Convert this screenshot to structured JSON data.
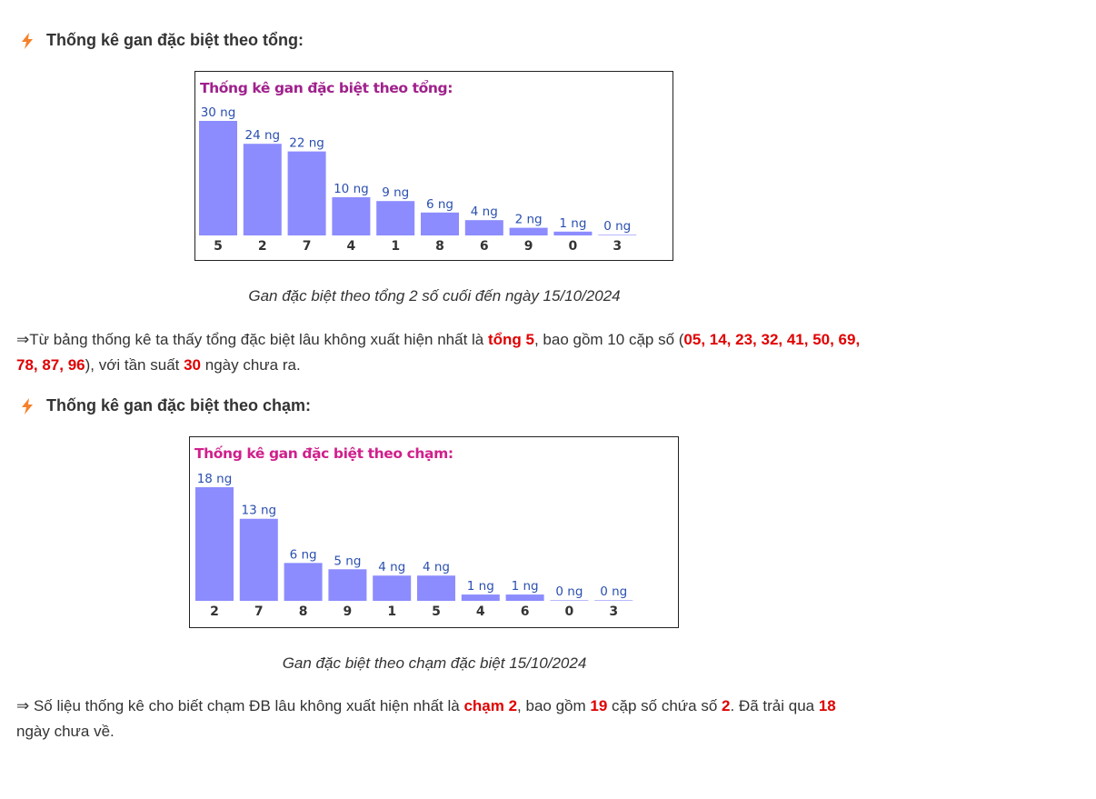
{
  "section1": {
    "heading": "Thống kê gan đặc biệt theo tổng:",
    "caption": "Gan đặc biệt theo tổng 2 số cuối đến ngày 15/10/2024",
    "para": {
      "p1": "⇒Từ bảng thống kê ta thấy tổng đặc biệt lâu không xuất hiện nhất là ",
      "h1": "tổng 5",
      "p2": ", bao gồm 10 cặp số (",
      "h2": "05, 14, 23, 32, 41, 50, 69, 78, 87, 96",
      "p3": "), với tần suất ",
      "h3": "30",
      "p4": " ngày chưa ra."
    }
  },
  "section2": {
    "heading": "Thống kê gan đặc biệt theo chạm:",
    "caption": "Gan đặc biệt theo chạm đặc biệt 15/10/2024",
    "para": {
      "p1": "⇒ Số liệu thống kê cho biết chạm ĐB lâu không xuất hiện nhất là ",
      "h1": "chạm 2",
      "p2": ", bao gồm ",
      "h2": "19",
      "p3": " cặp số chứa số ",
      "h3": "2",
      "p4": ". Đã trải qua ",
      "h4": "18",
      "p5": " ngày chưa về."
    }
  },
  "colors": {
    "bar": "#8c8cff",
    "value_label": "#2a4fb0",
    "title_1": "#a0208c",
    "title_2": "#d0208c",
    "highlight": "#e00000",
    "bolt": "#f5822a"
  },
  "chart_data": [
    {
      "type": "bar",
      "title": "Thống kê gan đặc biệt theo tổng:",
      "categories": [
        "5",
        "2",
        "7",
        "4",
        "1",
        "8",
        "6",
        "9",
        "0",
        "3"
      ],
      "values": [
        30,
        24,
        22,
        10,
        9,
        6,
        4,
        2,
        1,
        0
      ],
      "value_labels": [
        "30 ng",
        "24 ng",
        "22 ng",
        "10 ng",
        "9 ng",
        "6 ng",
        "4 ng",
        "2 ng",
        "1 ng",
        "0 ng"
      ],
      "ylim": [
        0,
        30
      ],
      "grid": false
    },
    {
      "type": "bar",
      "title": "Thống kê gan đặc biệt theo chạm:",
      "categories": [
        "2",
        "7",
        "8",
        "9",
        "1",
        "5",
        "4",
        "6",
        "0",
        "3"
      ],
      "values": [
        18,
        13,
        6,
        5,
        4,
        4,
        1,
        1,
        0,
        0
      ],
      "value_labels": [
        "18 ng",
        "13 ng",
        "6 ng",
        "5 ng",
        "4 ng",
        "4 ng",
        "1 ng",
        "1 ng",
        "0 ng",
        "0 ng"
      ],
      "ylim": [
        0,
        18
      ],
      "grid": false
    }
  ]
}
